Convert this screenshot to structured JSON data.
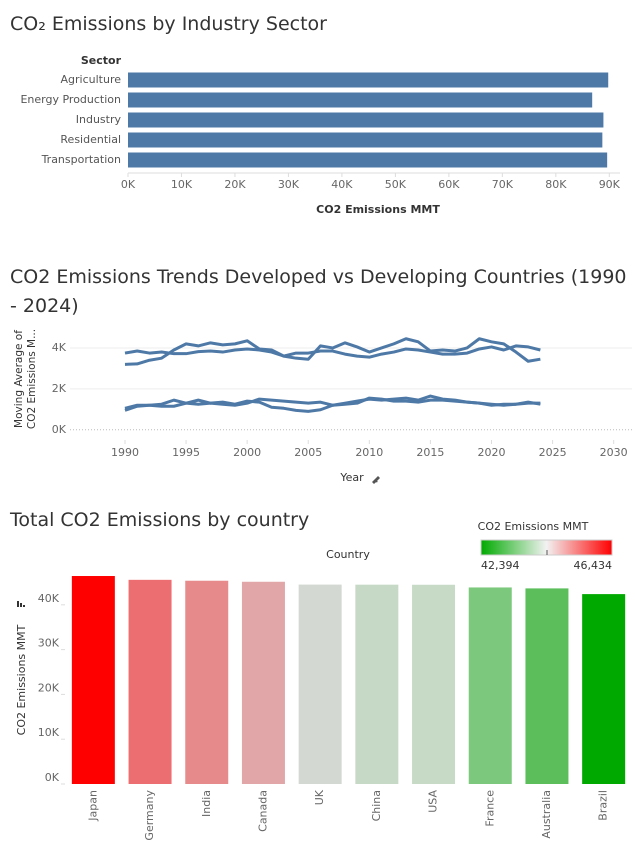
{
  "chart_data": [
    {
      "type": "bar",
      "orientation": "horizontal",
      "title": "CO₂ Emissions by Industry Sector",
      "category_header": "Sector",
      "categories": [
        "Agriculture",
        "Energy Production",
        "Industry",
        "Residential",
        "Transportation"
      ],
      "values": [
        89800,
        86800,
        88900,
        88700,
        89600
      ],
      "color": "#4e79a7",
      "xlabel": "CO2 Emissions MMT",
      "xlim": [
        0,
        92000
      ],
      "xticks": [
        {
          "value": 0,
          "label": "0K"
        },
        {
          "value": 10000,
          "label": "10K"
        },
        {
          "value": 20000,
          "label": "20K"
        },
        {
          "value": 30000,
          "label": "30K"
        },
        {
          "value": 40000,
          "label": "40K"
        },
        {
          "value": 50000,
          "label": "50K"
        },
        {
          "value": 60000,
          "label": "60K"
        },
        {
          "value": 70000,
          "label": "70K"
        },
        {
          "value": 80000,
          "label": "80K"
        },
        {
          "value": 90000,
          "label": "90K"
        }
      ]
    },
    {
      "type": "line",
      "title": "CO2 Emissions Trends Developed vs Developing Countries (1990 - 2024)",
      "xlabel": "Year",
      "ylabel": "Moving Average of CO2 Emissions M...",
      "x": [
        1990,
        1991,
        1992,
        1993,
        1994,
        1995,
        1996,
        1997,
        1998,
        1999,
        2000,
        2001,
        2002,
        2003,
        2004,
        2005,
        2006,
        2007,
        2008,
        2009,
        2010,
        2011,
        2012,
        2013,
        2014,
        2015,
        2016,
        2017,
        2018,
        2019,
        2020,
        2021,
        2022,
        2023,
        2024
      ],
      "xlim": [
        1985.5,
        2031.5
      ],
      "xticks": [
        1990,
        1995,
        2000,
        2005,
        2010,
        2015,
        2020,
        2025,
        2030
      ],
      "ylim": [
        -500,
        5000
      ],
      "yticks": [
        {
          "value": 0,
          "label": "0K"
        },
        {
          "value": 2000,
          "label": "2K"
        },
        {
          "value": 4000,
          "label": "4K"
        }
      ],
      "grid": true,
      "series": [
        {
          "color": "#4e79a7",
          "values": [
            3750,
            3850,
            3750,
            3800,
            3720,
            3720,
            3820,
            3850,
            3800,
            3900,
            3950,
            3900,
            3800,
            3600,
            3750,
            3750,
            3850,
            3850,
            3700,
            3600,
            3550,
            3700,
            3800,
            3950,
            3900,
            3800,
            3700,
            3700,
            3750,
            3950,
            4050,
            3900,
            4100,
            4050,
            3900
          ]
        },
        {
          "color": "#4e79a7",
          "values": [
            3200,
            3220,
            3400,
            3500,
            3900,
            4200,
            4100,
            4250,
            4150,
            4200,
            4350,
            3950,
            3900,
            3600,
            3500,
            3450,
            4100,
            4000,
            4250,
            4050,
            3800,
            4000,
            4200,
            4450,
            4300,
            3850,
            3900,
            3850,
            4000,
            4450,
            4300,
            4200,
            3800,
            3350,
            3450
          ]
        },
        {
          "color": "#4e79a7",
          "values": [
            950,
            1150,
            1200,
            1250,
            1450,
            1300,
            1250,
            1300,
            1250,
            1200,
            1300,
            1500,
            1450,
            1400,
            1350,
            1300,
            1350,
            1200,
            1300,
            1400,
            1500,
            1450,
            1500,
            1550,
            1450,
            1650,
            1500,
            1450,
            1350,
            1300,
            1250,
            1200,
            1250,
            1300,
            1300
          ]
        },
        {
          "color": "#4e79a7",
          "values": [
            1050,
            1200,
            1200,
            1150,
            1150,
            1300,
            1450,
            1300,
            1350,
            1250,
            1400,
            1350,
            1100,
            1050,
            950,
            900,
            980,
            1200,
            1250,
            1300,
            1550,
            1500,
            1400,
            1400,
            1350,
            1450,
            1450,
            1400,
            1350,
            1300,
            1200,
            1250,
            1250,
            1350,
            1250
          ]
        }
      ]
    },
    {
      "type": "bar",
      "orientation": "vertical",
      "title": "Total CO2 Emissions by country",
      "category_header": "Country",
      "ylabel": "CO2 Emissions MMT",
      "categories": [
        "Japan",
        "Germany",
        "India",
        "Canada",
        "UK",
        "China",
        "USA",
        "France",
        "Australia",
        "Brazil"
      ],
      "values": [
        46434,
        45583,
        45381,
        45150,
        44520,
        44500,
        44480,
        43880,
        43670,
        42394
      ],
      "colors": [
        "#ff0000",
        "#ec6e70",
        "#e68a8c",
        "#e0a6a8",
        "#d3d9d2",
        "#c6d8c6",
        "#c6dac6",
        "#7cc87c",
        "#5bbe5b",
        "#00a900"
      ],
      "ylim": [
        0,
        48000
      ],
      "yticks": [
        {
          "value": 0,
          "label": "0K"
        },
        {
          "value": 10000,
          "label": "10K"
        },
        {
          "value": 20000,
          "label": "20K"
        },
        {
          "value": 30000,
          "label": "30K"
        },
        {
          "value": 40000,
          "label": "40K"
        }
      ],
      "color_legend": {
        "title": "CO2 Emissions MMT",
        "colors": [
          "#00aa00",
          "#f2f2f2",
          "#ff0000"
        ],
        "min": {
          "value": 42394,
          "label": "42,394"
        },
        "max": {
          "value": 46434,
          "label": "46,434"
        }
      }
    }
  ]
}
